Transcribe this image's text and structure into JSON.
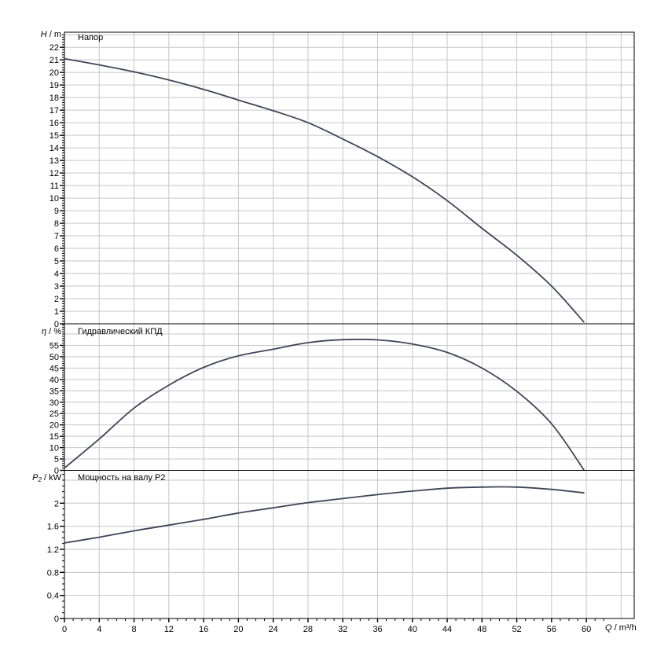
{
  "colors": {
    "curve": "#3d4757",
    "grid": "#c6c6c6",
    "axis": "#000000",
    "text": "#000000",
    "background": "#ffffff"
  },
  "x_axis": {
    "label": {
      "sym": "Q",
      "rest": " / m³/h"
    },
    "lim": [
      0,
      65.5
    ],
    "major_step": 4,
    "grid_step": 4,
    "grid_max": 64,
    "minor_step": 1,
    "minor_max": 62,
    "tick_labels": [
      "0",
      "4",
      "8",
      "12",
      "16",
      "20",
      "24",
      "28",
      "32",
      "36",
      "40",
      "44",
      "48",
      "52",
      "56",
      "60"
    ]
  },
  "chart_data": [
    {
      "type": "line",
      "name": "head",
      "title": "Напор",
      "ylabel": {
        "sym": "H",
        "rest": " / m"
      },
      "ylim": [
        0,
        23.2
      ],
      "ytick_step": 1,
      "grid_step": 1,
      "minor_step": 0.2,
      "ytick_labels": [
        "0",
        "1",
        "2",
        "3",
        "4",
        "5",
        "6",
        "7",
        "8",
        "9",
        "10",
        "11",
        "12",
        "13",
        "14",
        "15",
        "16",
        "17",
        "18",
        "19",
        "20",
        "21",
        "22"
      ],
      "x": [
        0,
        4,
        8,
        12,
        16,
        20,
        24,
        28,
        32,
        36,
        40,
        44,
        48,
        52,
        56,
        59.7
      ],
      "y": [
        21.1,
        20.6,
        20.05,
        19.4,
        18.65,
        17.8,
        16.95,
        16.0,
        14.7,
        13.3,
        11.7,
        9.8,
        7.6,
        5.45,
        3.0,
        0.15
      ]
    },
    {
      "type": "line",
      "name": "efficiency",
      "title": "Гидравлический КПД",
      "ylabel": {
        "sym": "η",
        "rest": " / %"
      },
      "ylim": [
        0,
        64.5
      ],
      "ytick_step": 5,
      "grid_step": 5,
      "minor_step": 1,
      "ytick_labels": [
        "0",
        "5",
        "10",
        "15",
        "20",
        "25",
        "30",
        "35",
        "40",
        "45",
        "50",
        "55"
      ],
      "x": [
        0,
        4,
        8,
        12,
        16,
        20,
        24,
        28,
        32,
        36,
        40,
        44,
        48,
        52,
        56,
        59.7
      ],
      "y": [
        1.0,
        13.8,
        27.4,
        37.5,
        45.3,
        50.4,
        53.3,
        56.2,
        57.5,
        57.4,
        55.6,
        51.9,
        45.0,
        34.8,
        20.5,
        0.3
      ]
    },
    {
      "type": "line",
      "name": "power",
      "title": "Мощность на валу P2",
      "ylabel": {
        "sym": "P",
        "sub": "2",
        "rest": " / kW"
      },
      "ylim": [
        0,
        2.57
      ],
      "ytick_step": 0.4,
      "grid_step": 0.4,
      "minor_step": 0.1,
      "ytick_labels": [
        "0",
        "0.4",
        "0.8",
        "1.2",
        "1.6",
        "2"
      ],
      "x": [
        0,
        4,
        8,
        12,
        16,
        20,
        24,
        28,
        32,
        36,
        40,
        44,
        48,
        52,
        56,
        59.7
      ],
      "y": [
        1.31,
        1.41,
        1.52,
        1.62,
        1.72,
        1.83,
        1.92,
        2.01,
        2.08,
        2.15,
        2.21,
        2.26,
        2.28,
        2.28,
        2.24,
        2.18
      ]
    }
  ]
}
